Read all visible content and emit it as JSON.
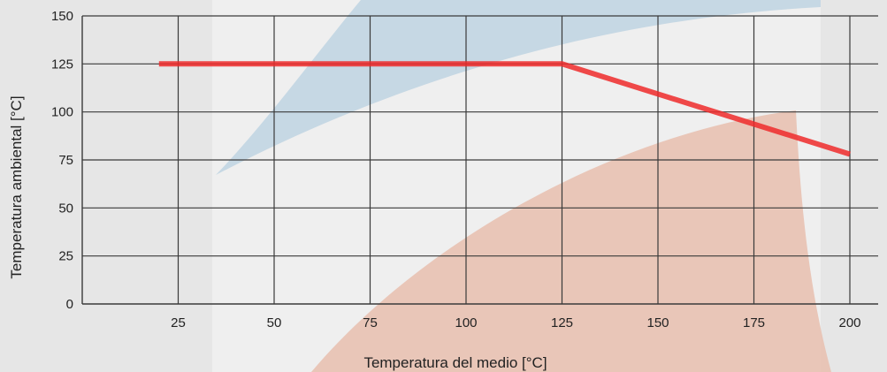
{
  "chart_data": {
    "type": "line",
    "title": "",
    "xlabel": "Temperatura del medio [°C]",
    "ylabel": "Temperatura ambiental [°C]",
    "xlim": [
      0,
      200
    ],
    "ylim": [
      0,
      150
    ],
    "x_ticks": [
      "25",
      "50",
      "75",
      "100",
      "125",
      "150",
      "175",
      "200"
    ],
    "y_ticks": [
      "0",
      "25",
      "50",
      "75",
      "100",
      "125",
      "150"
    ],
    "grid": true,
    "series": [
      {
        "color": "#ee2a2a",
        "points": [
          {
            "x": 20,
            "y": 125
          },
          {
            "x": 125,
            "y": 125
          },
          {
            "x": 200,
            "y": 78
          }
        ]
      }
    ]
  },
  "colors": {
    "background": "#ebebeb",
    "grid": "#3a3a3a",
    "line": "#ee2a2a",
    "watermark_blue": "#c3d6e3",
    "watermark_orange": "#e8c3b4"
  }
}
